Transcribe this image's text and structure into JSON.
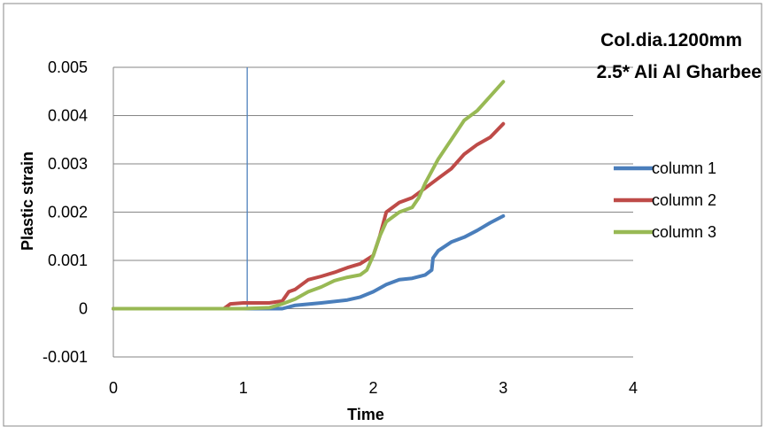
{
  "chart_data": {
    "type": "line",
    "title_lines": [
      "Col.dia.1200mm",
      "2.5* Ali Al Gharbee"
    ],
    "xlabel": "Time",
    "ylabel": "Plastic strain",
    "xlim": [
      0,
      4
    ],
    "ylim": [
      -0.001,
      0.005
    ],
    "x_ticks": [
      "0",
      "1",
      "2",
      "3",
      "4"
    ],
    "y_ticks": [
      "-0.001",
      "0",
      "0.001",
      "0.002",
      "0.003",
      "0.004",
      "0.005"
    ],
    "grid": "horizontal",
    "legend_position": "right",
    "marker_line": {
      "x": 1.03,
      "y_from": -0.0,
      "y_to": 0.005,
      "color": "#4f81bd"
    },
    "series": [
      {
        "name": "column 1",
        "color": "#4a7ebb",
        "points": [
          [
            0,
            0
          ],
          [
            0.5,
            0
          ],
          [
            1.0,
            0
          ],
          [
            1.3,
            0
          ],
          [
            1.4,
            7e-05
          ],
          [
            1.6,
            0.00012
          ],
          [
            1.8,
            0.00018
          ],
          [
            1.9,
            0.00024
          ],
          [
            2.0,
            0.00035
          ],
          [
            2.1,
            0.0005
          ],
          [
            2.2,
            0.0006
          ],
          [
            2.3,
            0.00063
          ],
          [
            2.4,
            0.0007
          ],
          [
            2.45,
            0.0008
          ],
          [
            2.46,
            0.00105
          ],
          [
            2.5,
            0.0012
          ],
          [
            2.6,
            0.00138
          ],
          [
            2.7,
            0.00148
          ],
          [
            2.8,
            0.00162
          ],
          [
            2.9,
            0.00178
          ],
          [
            3.0,
            0.00192
          ]
        ]
      },
      {
        "name": "column 2",
        "color": "#be4b48",
        "points": [
          [
            0,
            0
          ],
          [
            0.5,
            0
          ],
          [
            0.85,
            0
          ],
          [
            0.9,
            0.0001
          ],
          [
            1.0,
            0.00012
          ],
          [
            1.2,
            0.00012
          ],
          [
            1.3,
            0.00016
          ],
          [
            1.35,
            0.00035
          ],
          [
            1.4,
            0.0004
          ],
          [
            1.5,
            0.0006
          ],
          [
            1.6,
            0.00067
          ],
          [
            1.7,
            0.00075
          ],
          [
            1.8,
            0.00085
          ],
          [
            1.9,
            0.00093
          ],
          [
            2.0,
            0.0011
          ],
          [
            2.05,
            0.0015
          ],
          [
            2.1,
            0.002
          ],
          [
            2.15,
            0.0021
          ],
          [
            2.2,
            0.0022
          ],
          [
            2.3,
            0.0023
          ],
          [
            2.4,
            0.0025
          ],
          [
            2.5,
            0.0027
          ],
          [
            2.6,
            0.0029
          ],
          [
            2.7,
            0.0032
          ],
          [
            2.8,
            0.0034
          ],
          [
            2.9,
            0.00355
          ],
          [
            3.0,
            0.00383
          ]
        ]
      },
      {
        "name": "column 3",
        "color": "#98b954",
        "points": [
          [
            0,
            0
          ],
          [
            0.5,
            0
          ],
          [
            1.0,
            0
          ],
          [
            1.2,
            2e-05
          ],
          [
            1.3,
            0.0001
          ],
          [
            1.4,
            0.0002
          ],
          [
            1.5,
            0.00035
          ],
          [
            1.6,
            0.00045
          ],
          [
            1.7,
            0.00058
          ],
          [
            1.8,
            0.00065
          ],
          [
            1.9,
            0.0007
          ],
          [
            1.95,
            0.0008
          ],
          [
            2.0,
            0.0011
          ],
          [
            2.05,
            0.0015
          ],
          [
            2.1,
            0.0018
          ],
          [
            2.2,
            0.002
          ],
          [
            2.3,
            0.0021
          ],
          [
            2.35,
            0.0023
          ],
          [
            2.4,
            0.0026
          ],
          [
            2.5,
            0.0031
          ],
          [
            2.6,
            0.0035
          ],
          [
            2.7,
            0.0039
          ],
          [
            2.8,
            0.0041
          ],
          [
            2.9,
            0.0044
          ],
          [
            3.0,
            0.0047
          ]
        ]
      }
    ]
  }
}
